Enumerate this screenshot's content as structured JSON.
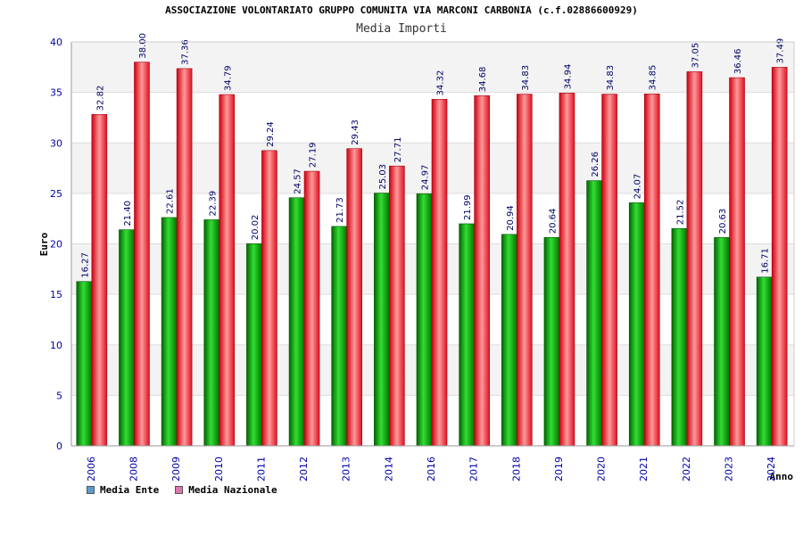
{
  "chart_data": {
    "type": "bar",
    "title": "ASSOCIAZIONE VOLONTARIATO GRUPPO COMUNITA VIA MARCONI CARBONIA (c.f.02886600929)",
    "subtitle": "Media Importi",
    "ylabel": "Euro",
    "xlabel": "Anno",
    "ylim": [
      0,
      40
    ],
    "yticks": [
      0,
      5,
      10,
      15,
      20,
      25,
      30,
      35,
      40
    ],
    "grid": true,
    "legend_position": "bottom-left",
    "categories": [
      "2006",
      "2008",
      "2009",
      "2010",
      "2011",
      "2012",
      "2013",
      "2014",
      "2016",
      "2017",
      "2018",
      "2019",
      "2020",
      "2021",
      "2022",
      "2023",
      "2024"
    ],
    "series": [
      {
        "name": "Media Ente",
        "color": "#00aa00",
        "legend_color": "#5b9bd5",
        "values": [
          16.27,
          21.4,
          22.61,
          22.39,
          20.02,
          24.57,
          21.73,
          25.03,
          24.97,
          21.99,
          20.94,
          20.64,
          26.26,
          24.07,
          21.52,
          20.63,
          16.71
        ],
        "labels": [
          "16.27",
          "21.40",
          "22.61",
          "22.39",
          "20.02",
          "24.57",
          "21.73",
          "25.03",
          "24.97",
          "21.99",
          "20.94",
          "20.64",
          "26.26",
          "24.07",
          "21.52",
          "20.63",
          "16.71"
        ]
      },
      {
        "name": "Media Nazionale",
        "color": "#ee2233",
        "legend_color": "#dd77aa",
        "values": [
          32.82,
          38.0,
          37.36,
          34.79,
          29.24,
          27.19,
          29.43,
          27.71,
          34.32,
          34.68,
          34.83,
          34.94,
          34.83,
          34.85,
          37.05,
          36.46,
          37.49
        ],
        "labels": [
          "32.82",
          "38.00",
          "37.36",
          "34.79",
          "29.24",
          "27.19",
          "29.43",
          "27.71",
          "34.32",
          "34.68",
          "34.83",
          "34.94",
          "34.83",
          "34.85",
          "37.05",
          "36.46",
          "37.49"
        ]
      }
    ]
  }
}
